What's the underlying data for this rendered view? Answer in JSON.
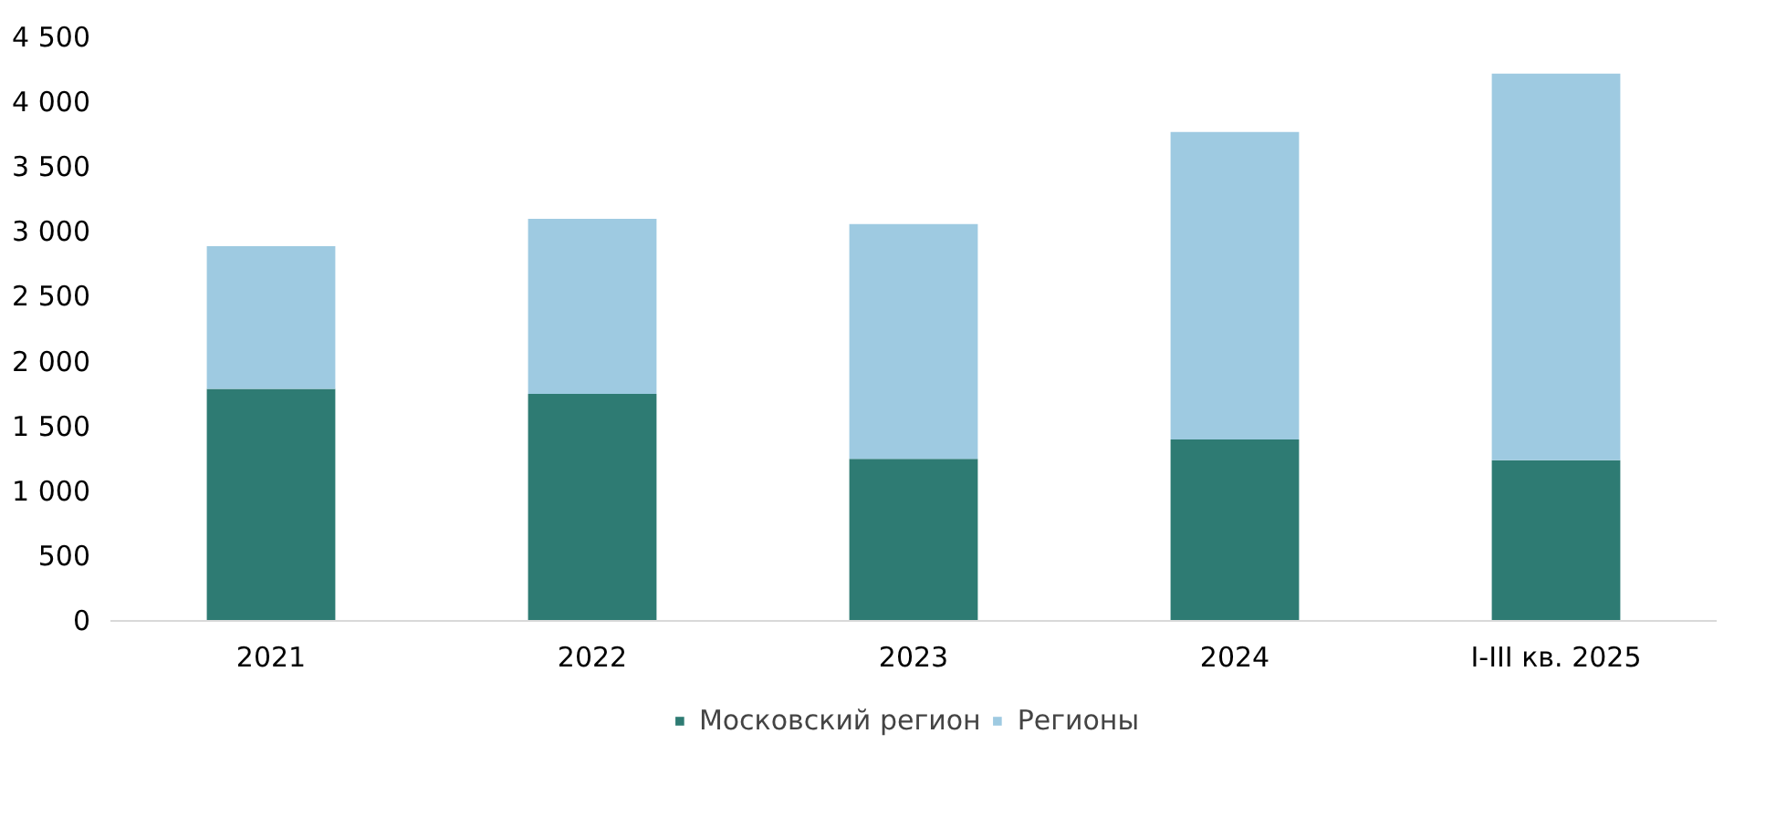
{
  "chart_data": {
    "type": "bar",
    "stacked": true,
    "categories": [
      "2021",
      "2022",
      "2023",
      "2024",
      "I-III кв. 2025"
    ],
    "series": [
      {
        "name": "Московский регион",
        "color": "#2e7b73",
        "values": [
          1790,
          1750,
          1250,
          1400,
          1240
        ]
      },
      {
        "name": "Регионы",
        "color": "#9ecae1",
        "values": [
          1100,
          1350,
          1810,
          2370,
          2980
        ]
      }
    ],
    "ylim": [
      0,
      4500
    ],
    "yticks": [
      0,
      500,
      {
        "value": 1000,
        "label": "1 000"
      },
      {
        "value": 1500,
        "label": "1 500"
      },
      {
        "value": 2000,
        "label": "2 000"
      },
      {
        "value": 2500,
        "label": "2 500"
      },
      {
        "value": 3000,
        "label": "3 000"
      },
      {
        "value": 3500,
        "label": "3 500"
      },
      {
        "value": 4000,
        "label": "4 000"
      },
      {
        "value": 4500,
        "label": "4 500"
      }
    ],
    "grid": false,
    "legend": "bottom"
  }
}
